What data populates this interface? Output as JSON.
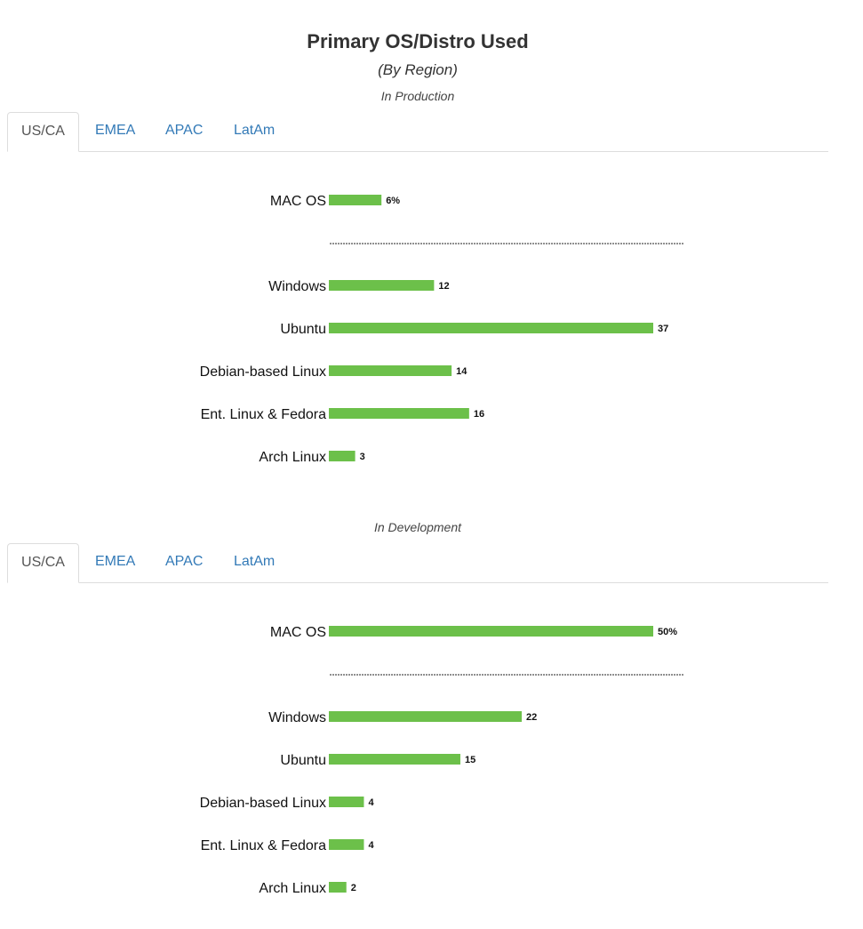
{
  "title": "Primary OS/Distro Used",
  "subtitle": "(By Region)",
  "bar_color": "#6cc04a",
  "tabs": [
    "US/CA",
    "EMEA",
    "APAC",
    "LatAm"
  ],
  "active_tab": "US/CA",
  "chart_data": [
    {
      "type": "bar",
      "orientation": "horizontal",
      "section_label": "In Production",
      "separator_after_first": true,
      "categories": [
        "MAC OS",
        "Windows",
        "Ubuntu",
        "Debian-based Linux",
        "Ent. Linux & Fedora",
        "Arch Linux"
      ],
      "values": [
        6,
        12,
        37,
        14,
        16,
        3
      ],
      "value_labels": [
        "6%",
        "12",
        "37",
        "14",
        "16",
        "3"
      ],
      "grid": false
    },
    {
      "type": "bar",
      "orientation": "horizontal",
      "section_label": "In Development",
      "separator_after_first": true,
      "categories": [
        "MAC OS",
        "Windows",
        "Ubuntu",
        "Debian-based Linux",
        "Ent. Linux & Fedora",
        "Arch Linux"
      ],
      "values": [
        50,
        22,
        15,
        4,
        4,
        2
      ],
      "value_labels": [
        "50%",
        "22",
        "15",
        "4",
        "4",
        "2"
      ],
      "grid": false
    }
  ]
}
